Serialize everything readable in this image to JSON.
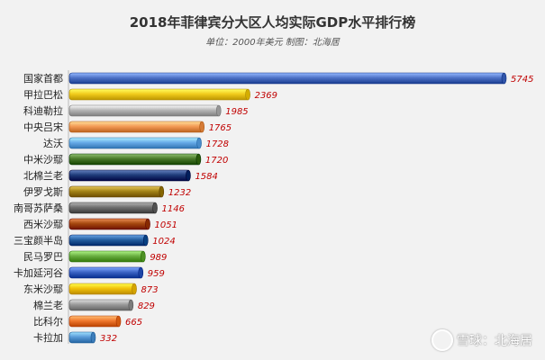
{
  "chart_data": {
    "type": "bar",
    "orientation": "horizontal",
    "title": "2018年菲律宾分大区人均实际GDP水平排行榜",
    "subtitle": "单位：2000年美元 制图：北海居",
    "categories": [
      "国家首都",
      "甲拉巴松",
      "科迪勒拉",
      "中央吕宋",
      "达沃",
      "中米沙鄢",
      "北棉兰老",
      "伊罗戈斯",
      "南哥苏萨桑",
      "西米沙鄢",
      "三宝颜半岛",
      "民马罗巴",
      "卡加延河谷",
      "东米沙鄢",
      "棉兰老",
      "比科尔",
      "卡拉加"
    ],
    "values": [
      5745,
      2369,
      1985,
      1765,
      1728,
      1720,
      1584,
      1232,
      1146,
      1051,
      1024,
      989,
      959,
      873,
      829,
      665,
      332
    ],
    "colors": [
      "#4f73c7",
      "#f2cc1c",
      "#b5b5b5",
      "#f39a55",
      "#67aae8",
      "#4a7a2a",
      "#1f3c7a",
      "#a48417",
      "#6f6f6f",
      "#a5480f",
      "#255fa0",
      "#6aaf41",
      "#3c64c5",
      "#f2c20a",
      "#9a9a9a",
      "#f0782e",
      "#5a9bd8"
    ],
    "value_label_color": "#c00000",
    "xlim": [
      0,
      5745
    ],
    "grid": false,
    "legend": "none"
  },
  "watermark": "雪球：北海居"
}
